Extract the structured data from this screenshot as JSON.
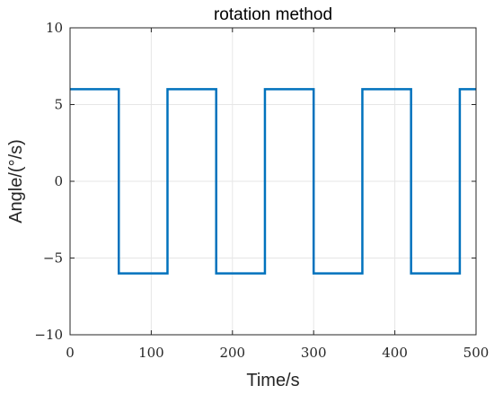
{
  "chart_data": {
    "type": "line",
    "title": "rotation method",
    "xlabel": "Time/s",
    "ylabel": "Angle/(°/s)",
    "xlim": [
      0,
      500
    ],
    "ylim": [
      -10,
      10
    ],
    "xticks": [
      0,
      100,
      200,
      300,
      400,
      500
    ],
    "xtick_labels": [
      "0",
      "100",
      "200",
      "300",
      "400",
      "500"
    ],
    "yticks": [
      -10,
      -5,
      0,
      5,
      10
    ],
    "ytick_labels": [
      "−10",
      "−5",
      "0",
      "5",
      "10"
    ],
    "grid": true,
    "series": [
      {
        "color": "#0072BD",
        "x": [
          0,
          60,
          60,
          120,
          120,
          180,
          180,
          240,
          240,
          300,
          300,
          360,
          360,
          420,
          420,
          480,
          480,
          500
        ],
        "y": [
          6,
          6,
          -6,
          -6,
          6,
          6,
          -6,
          -6,
          6,
          6,
          -6,
          -6,
          6,
          6,
          -6,
          -6,
          6,
          6
        ]
      }
    ]
  }
}
